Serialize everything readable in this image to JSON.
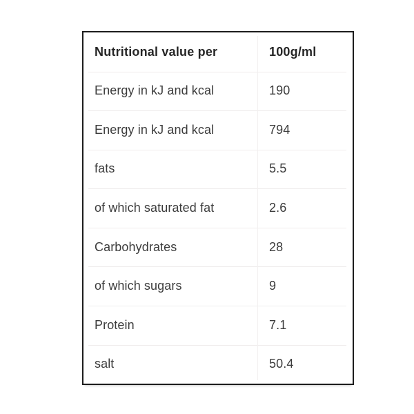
{
  "table": {
    "header": {
      "label": "Nutritional value per",
      "value": "100g/ml"
    },
    "rows": [
      {
        "label": "Energy in kJ and kcal",
        "value": "190"
      },
      {
        "label": "Energy in kJ and kcal",
        "value": "794"
      },
      {
        "label": "fats",
        "value": "5.5"
      },
      {
        "label": "of which saturated fat",
        "value": "2.6"
      },
      {
        "label": "Carbohydrates",
        "value": "28"
      },
      {
        "label": "of which sugars",
        "value": "9"
      },
      {
        "label": "Protein",
        "value": "7.1"
      },
      {
        "label": "salt",
        "value": "50.4"
      }
    ]
  },
  "colors": {
    "background": "#ffffff",
    "table_border": "#1c1c1c",
    "row_divider": "#efecec",
    "column_divider": "#f2f0f0",
    "header_text": "#262626",
    "body_text": "#3c3c3c"
  }
}
